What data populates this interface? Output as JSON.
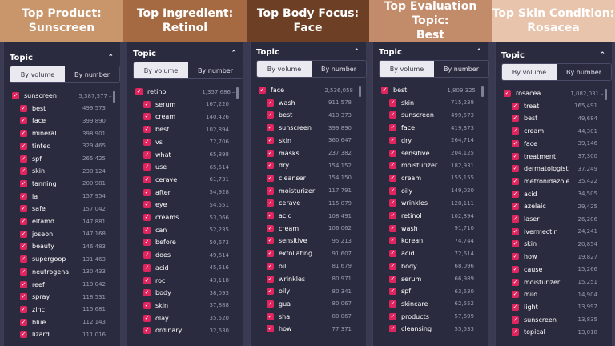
{
  "colors": {
    "banners": [
      "#c9956b",
      "#a56a41",
      "#6d4026",
      "#c28b69",
      "#e8c4ad"
    ],
    "checkbox": "#e0245e",
    "panel": "#2b2b3f"
  },
  "icons": {
    "checkbox": "checkmark-icon",
    "collapse": "chevron-up-icon",
    "parent_toggle": "minus-icon"
  },
  "columns": [
    {
      "banner_line1": "Top Product:",
      "banner_line2": "Sunscreen",
      "panel_title": "Topic",
      "tab_volume": "By volume",
      "tab_number": "By number",
      "parent": {
        "term": "sunscreen",
        "value": "5,387,577"
      },
      "items": [
        {
          "term": "best",
          "value": "499,573"
        },
        {
          "term": "face",
          "value": "399,890"
        },
        {
          "term": "mineral",
          "value": "398,901"
        },
        {
          "term": "tinted",
          "value": "329,465"
        },
        {
          "term": "spf",
          "value": "265,425"
        },
        {
          "term": "skin",
          "value": "238,124"
        },
        {
          "term": "tanning",
          "value": "200,981"
        },
        {
          "term": "la",
          "value": "157,954"
        },
        {
          "term": "safe",
          "value": "157,042"
        },
        {
          "term": "eltamd",
          "value": "147,881"
        },
        {
          "term": "joseon",
          "value": "147,168"
        },
        {
          "term": "beauty",
          "value": "146,483"
        },
        {
          "term": "supergoop",
          "value": "131,463"
        },
        {
          "term": "neutrogena",
          "value": "130,433"
        },
        {
          "term": "reef",
          "value": "119,042"
        },
        {
          "term": "spray",
          "value": "118,531"
        },
        {
          "term": "zinc",
          "value": "115,681"
        },
        {
          "term": "blue",
          "value": "112,143"
        },
        {
          "term": "lizard",
          "value": "111,016"
        }
      ]
    },
    {
      "banner_line1": "Top Ingredient:",
      "banner_line2": "Retinol",
      "panel_title": "Topic",
      "tab_volume": "By volume",
      "tab_number": "By number",
      "parent": {
        "term": "retinol",
        "value": "1,357,686"
      },
      "items": [
        {
          "term": "serum",
          "value": "167,220"
        },
        {
          "term": "cream",
          "value": "140,426"
        },
        {
          "term": "best",
          "value": "102,894"
        },
        {
          "term": "vs",
          "value": "72,706"
        },
        {
          "term": "what",
          "value": "65,898"
        },
        {
          "term": "use",
          "value": "65,514"
        },
        {
          "term": "cerave",
          "value": "61,731"
        },
        {
          "term": "after",
          "value": "54,928"
        },
        {
          "term": "eye",
          "value": "54,551"
        },
        {
          "term": "creams",
          "value": "53,066"
        },
        {
          "term": "can",
          "value": "52,235"
        },
        {
          "term": "before",
          "value": "50,673"
        },
        {
          "term": "does",
          "value": "49,614"
        },
        {
          "term": "acid",
          "value": "45,516"
        },
        {
          "term": "roc",
          "value": "43,118"
        },
        {
          "term": "body",
          "value": "38,093"
        },
        {
          "term": "skin",
          "value": "37,888"
        },
        {
          "term": "olay",
          "value": "35,520"
        },
        {
          "term": "ordinary",
          "value": "32,630"
        }
      ]
    },
    {
      "banner_line1": "Top Body Focus:",
      "banner_line2": "Face",
      "panel_title": "Topic",
      "tab_volume": "By volume",
      "tab_number": "By number",
      "parent": {
        "term": "face",
        "value": "2,536,058"
      },
      "items": [
        {
          "term": "wash",
          "value": "911,578"
        },
        {
          "term": "best",
          "value": "419,373"
        },
        {
          "term": "sunscreen",
          "value": "399,890"
        },
        {
          "term": "skin",
          "value": "360,647"
        },
        {
          "term": "masks",
          "value": "237,382"
        },
        {
          "term": "dry",
          "value": "154,152"
        },
        {
          "term": "cleanser",
          "value": "154,150"
        },
        {
          "term": "moisturizer",
          "value": "117,791"
        },
        {
          "term": "cerave",
          "value": "115,079"
        },
        {
          "term": "acid",
          "value": "108,491"
        },
        {
          "term": "cream",
          "value": "106,062"
        },
        {
          "term": "sensitive",
          "value": "95,213"
        },
        {
          "term": "exfoliating",
          "value": "91,607"
        },
        {
          "term": "oil",
          "value": "81,679"
        },
        {
          "term": "wrinkles",
          "value": "80,971"
        },
        {
          "term": "oily",
          "value": "80,341"
        },
        {
          "term": "gua",
          "value": "80,067"
        },
        {
          "term": "sha",
          "value": "80,067"
        },
        {
          "term": "how",
          "value": "77,371"
        }
      ]
    },
    {
      "banner_line1": "Top Evaluation Topic:",
      "banner_line2": "Best",
      "panel_title": "Topic",
      "tab_volume": "By volume",
      "tab_number": "By number",
      "parent": {
        "term": "best",
        "value": "1,809,325"
      },
      "items": [
        {
          "term": "skin",
          "value": "715,239"
        },
        {
          "term": "sunscreen",
          "value": "499,573"
        },
        {
          "term": "face",
          "value": "419,373"
        },
        {
          "term": "dry",
          "value": "264,714"
        },
        {
          "term": "sensitive",
          "value": "204,125"
        },
        {
          "term": "moisturizer",
          "value": "182,931"
        },
        {
          "term": "cream",
          "value": "155,155"
        },
        {
          "term": "oily",
          "value": "149,020"
        },
        {
          "term": "wrinkles",
          "value": "128,111"
        },
        {
          "term": "retinol",
          "value": "102,894"
        },
        {
          "term": "wash",
          "value": "91,710"
        },
        {
          "term": "korean",
          "value": "74,744"
        },
        {
          "term": "acid",
          "value": "72,614"
        },
        {
          "term": "body",
          "value": "68,096"
        },
        {
          "term": "serum",
          "value": "66,989"
        },
        {
          "term": "spf",
          "value": "63,530"
        },
        {
          "term": "skincare",
          "value": "62,552"
        },
        {
          "term": "products",
          "value": "57,699"
        },
        {
          "term": "cleansing",
          "value": "55,533"
        }
      ]
    },
    {
      "banner_line1": "Top Skin Condition:",
      "banner_line2": "Rosacea",
      "panel_title": "Topic",
      "tab_volume": "By volume",
      "tab_number": "By number",
      "parent": {
        "term": "rosacea",
        "value": "1,082,031"
      },
      "items": [
        {
          "term": "treat",
          "value": "165,491"
        },
        {
          "term": "best",
          "value": "49,684"
        },
        {
          "term": "cream",
          "value": "44,301"
        },
        {
          "term": "face",
          "value": "39,146"
        },
        {
          "term": "treatment",
          "value": "37,300"
        },
        {
          "term": "dermatologist",
          "value": "37,249"
        },
        {
          "term": "metronidazole",
          "value": "35,422"
        },
        {
          "term": "acid",
          "value": "34,505"
        },
        {
          "term": "azelaic",
          "value": "29,425"
        },
        {
          "term": "laser",
          "value": "26,286"
        },
        {
          "term": "ivermectin",
          "value": "24,241"
        },
        {
          "term": "skin",
          "value": "20,854"
        },
        {
          "term": "how",
          "value": "19,827"
        },
        {
          "term": "cause",
          "value": "15,266"
        },
        {
          "term": "moisturizer",
          "value": "15,251"
        },
        {
          "term": "mild",
          "value": "14,904"
        },
        {
          "term": "light",
          "value": "13,997"
        },
        {
          "term": "sunscreen",
          "value": "13,835"
        },
        {
          "term": "topical",
          "value": "13,018"
        }
      ]
    }
  ]
}
